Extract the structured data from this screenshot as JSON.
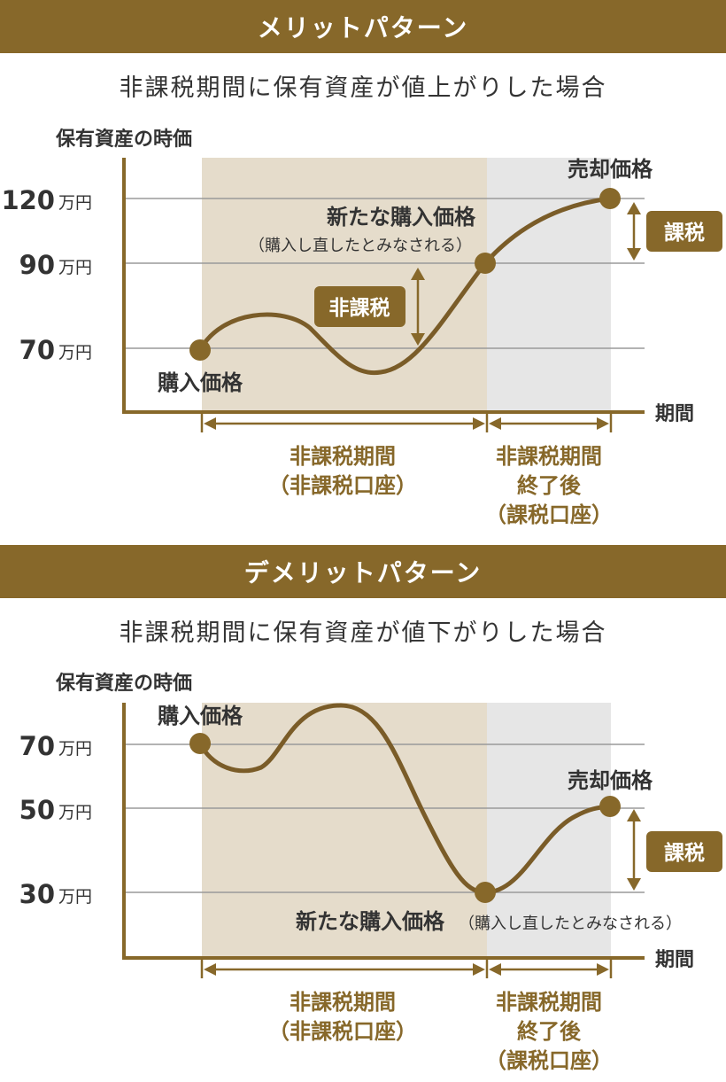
{
  "colors": {
    "brown": "#87682a",
    "curve": "#7a5c28",
    "tax_free_zone": "#e5dccb",
    "taxed_zone": "#e6e6e6",
    "grid": "#9a9a9a",
    "axis": "#87682a",
    "text": "#333333"
  },
  "merit": {
    "banner": "メリットパターン",
    "subtitle": "非課税期間に保有資産が値上がりした場合",
    "y_axis_label": "保有資産の時価",
    "x_axis_label": "期間",
    "ticks": [
      {
        "num": "120",
        "unit": "万円"
      },
      {
        "num": "90",
        "unit": "万円"
      },
      {
        "num": "70",
        "unit": "万円"
      }
    ],
    "purchase_label": "購入価格",
    "new_price_label": "新たな購入価格",
    "new_price_note": "（購入し直したとみなされる）",
    "sale_label": "売却価格",
    "tax_free_badge": "非課税",
    "taxed_badge": "課税",
    "period1_line1": "非課税期間",
    "period1_line2": "（非課税口座）",
    "period2_line1": "非課税期間",
    "period2_line2": "終了後",
    "period2_line3": "（課税口座）"
  },
  "demerit": {
    "banner": "デメリットパターン",
    "subtitle": "非課税期間に保有資産が値下がりした場合",
    "y_axis_label": "保有資産の時価",
    "x_axis_label": "期間",
    "ticks": [
      {
        "num": "70",
        "unit": "万円"
      },
      {
        "num": "50",
        "unit": "万円"
      },
      {
        "num": "30",
        "unit": "万円"
      }
    ],
    "purchase_label": "購入価格",
    "new_price_label": "新たな購入価格",
    "new_price_note": "（購入し直したとみなされる）",
    "sale_label": "売却価格",
    "taxed_badge": "課税",
    "period1_line1": "非課税期間",
    "period1_line2": "（非課税口座）",
    "period2_line1": "非課税期間",
    "period2_line2": "終了後",
    "period2_line3": "（課税口座）"
  }
}
